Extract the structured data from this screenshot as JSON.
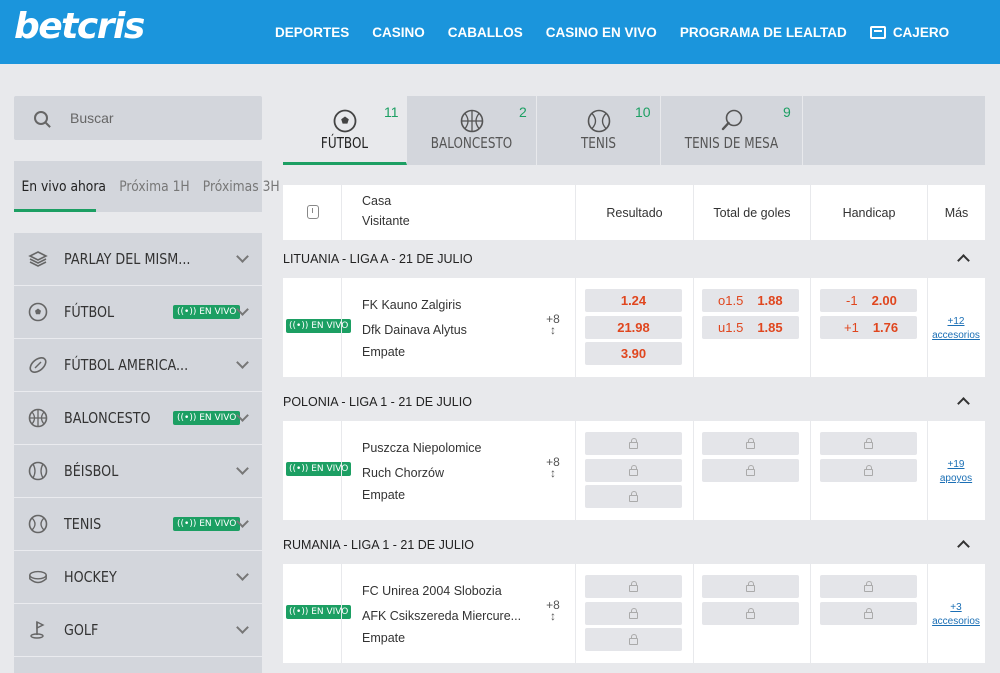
{
  "brand": {
    "logo_text": "betcris",
    "color": "#1b95dc",
    "live_green": "#1c9f63",
    "odds_red": "#e0461e"
  },
  "nav": {
    "items": [
      "DEPORTES",
      "CASINO",
      "CABALLOS",
      "CASINO EN VIVO",
      "PROGRAMA DE LEALTAD"
    ],
    "cashier_label": "CAJERO"
  },
  "search": {
    "placeholder": "Buscar"
  },
  "live_tabs": [
    "En vivo ahora",
    "Próxima 1H",
    "Próximas 3H"
  ],
  "sidebar": {
    "live_badge": "EN VIVO",
    "items": [
      {
        "label": "PARLAY DEL MISM...",
        "icon": "layers-icon",
        "live": false
      },
      {
        "label": "FÚTBOL",
        "icon": "soccer-ball-icon",
        "live": true
      },
      {
        "label": "FÚTBOL AMERICA...",
        "icon": "american-football-icon",
        "live": false
      },
      {
        "label": "BALONCESTO",
        "icon": "basketball-icon",
        "live": true
      },
      {
        "label": "BÉISBOL",
        "icon": "baseball-icon",
        "live": false
      },
      {
        "label": "TENIS",
        "icon": "tennis-ball-icon",
        "live": true
      },
      {
        "label": "HOCKEY",
        "icon": "hockey-puck-icon",
        "live": false
      },
      {
        "label": "GOLF",
        "icon": "golf-flag-icon",
        "live": false
      }
    ]
  },
  "sport_tabs": [
    {
      "label": "FÚTBOL",
      "count": "11",
      "icon": "soccer-ball-icon"
    },
    {
      "label": "BALONCESTO",
      "count": "2",
      "icon": "basketball-icon"
    },
    {
      "label": "TENIS",
      "count": "10",
      "icon": "tennis-ball-icon"
    },
    {
      "label": "TENIS DE MESA",
      "count": "9",
      "icon": "table-tennis-icon"
    }
  ],
  "table_header": {
    "home": "Casa",
    "away": "Visitante",
    "columns": [
      "Resultado",
      "Total de goles",
      "Handicap",
      "Más"
    ]
  },
  "leagues": [
    {
      "title": "LITUANIA - LIGA A - 21 DE JULIO",
      "event": {
        "live_badge": "EN VIVO",
        "home": "FK Kauno Zalgiris",
        "away": "Dfk Dainava Alytus",
        "draw": "Empate",
        "more_top": "+",
        "more_count": "8",
        "result": [
          "1.24",
          "21.98",
          "3.90"
        ],
        "totals": [
          {
            "line": "o1.5",
            "odd": "1.88"
          },
          {
            "line": "u1.5",
            "odd": "1.85"
          }
        ],
        "handicap": [
          {
            "line": "-1",
            "odd": "2.00"
          },
          {
            "line": "+1",
            "odd": "1.76"
          }
        ],
        "locked": false,
        "extras_count": "+12",
        "extras_label": "accesorios"
      }
    },
    {
      "title": "POLONIA - LIGA 1 - 21 DE JULIO",
      "event": {
        "live_badge": "EN VIVO",
        "home": "Puszcza Niepolomice",
        "away": "Ruch Chorzów",
        "draw": "Empate",
        "more_top": "+",
        "more_count": "8",
        "locked": true,
        "extras_count": "+19",
        "extras_label": "apoyos"
      }
    },
    {
      "title": "RUMANIA - LIGA 1 - 21 DE JULIO",
      "event": {
        "live_badge": "EN VIVO",
        "home": "FC Unirea 2004 Slobozia",
        "away": "AFK Csikszereda Miercure...",
        "draw": "Empate",
        "more_top": "+",
        "more_count": "8",
        "locked": true,
        "extras_count": "+3",
        "extras_label": "accesorios"
      }
    }
  ]
}
